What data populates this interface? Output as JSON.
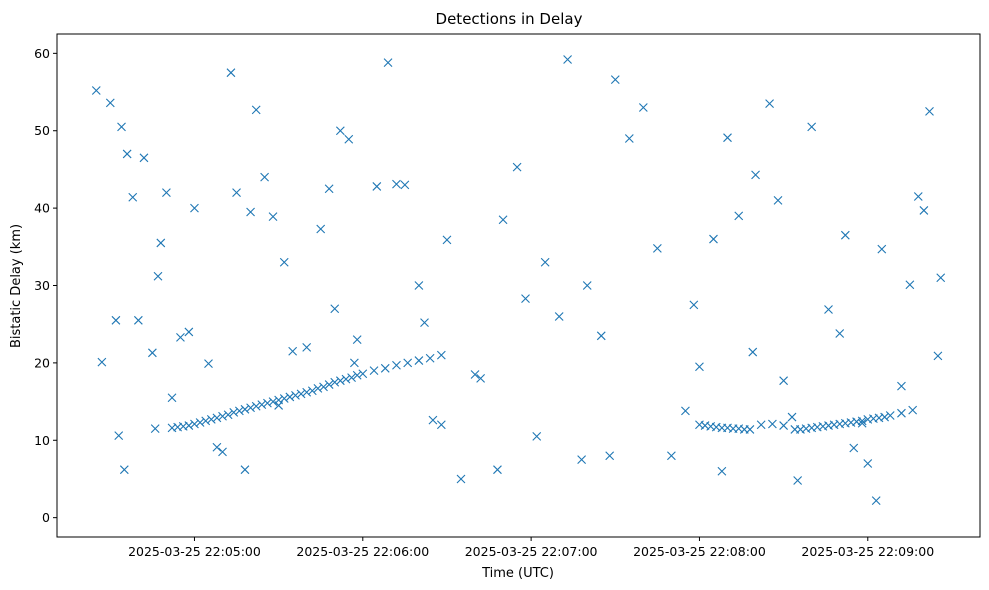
{
  "chart_data": {
    "type": "scatter",
    "title": "Detections in Delay",
    "xlabel": "Time (UTC)",
    "ylabel": "Bistatic Delay (km)",
    "x_ticks": [
      "2025-03-25 22:05:00",
      "2025-03-25 22:06:00",
      "2025-03-25 22:07:00",
      "2025-03-25 22:08:00",
      "2025-03-25 22:09:00"
    ],
    "y_ticks": [
      0,
      10,
      20,
      30,
      40,
      50,
      60
    ],
    "xlim": [
      "2025-03-25 22:04:11",
      "2025-03-25 22:09:40"
    ],
    "ylim": [
      -2.5,
      62.5
    ],
    "marker": "x",
    "grid": false,
    "color": "#1f77b4",
    "series": [
      {
        "x": [
          "2025-03-25 22:04:25",
          "2025-03-25 22:04:27",
          "2025-03-25 22:04:32",
          "2025-03-25 22:04:33",
          "2025-03-25 22:04:35",
          "2025-03-25 22:04:38",
          "2025-03-25 22:04:40",
          "2025-03-25 22:04:42",
          "2025-03-25 22:04:45",
          "2025-03-25 22:04:52",
          "2025-03-25 22:04:55",
          "2025-03-25 22:05:08",
          "2025-03-25 22:05:13",
          "2025-03-25 22:05:18",
          "2025-03-25 22:05:20",
          "2025-03-25 22:05:30",
          "2025-03-25 22:05:40",
          "2025-03-25 22:05:52",
          "2025-03-25 22:05:58",
          "2025-03-25 22:06:05",
          "2025-03-25 22:06:09",
          "2025-03-25 22:06:20",
          "2025-03-25 22:06:28",
          "2025-03-25 22:06:42",
          "2025-03-25 22:06:55",
          "2025-03-25 22:07:10",
          "2025-03-25 22:07:13",
          "2025-03-25 22:07:25",
          "2025-03-25 22:07:40",
          "2025-03-25 22:07:55",
          "2025-03-25 22:08:10",
          "2025-03-25 22:08:14",
          "2025-03-25 22:08:19",
          "2025-03-25 22:08:28",
          "2025-03-25 22:08:33",
          "2025-03-25 22:08:46",
          "2025-03-25 22:08:55",
          "2025-03-25 22:09:00",
          "2025-03-25 22:09:12",
          "2025-03-25 22:09:22",
          "2025-03-25 22:09:26",
          "2025-03-25 22:04:30",
          "2025-03-25 22:04:48",
          "2025-03-25 22:05:00",
          "2025-03-25 22:05:25",
          "2025-03-25 22:05:50",
          "2025-03-25 22:06:15",
          "2025-03-25 22:06:35",
          "2025-03-25 22:07:05",
          "2025-03-25 22:07:35",
          "2025-03-25 22:08:05",
          "2025-03-25 22:08:40",
          "2025-03-25 22:09:05",
          "2025-03-25 22:09:20",
          "2025-03-25 22:04:34",
          "2025-03-25 22:04:47",
          "2025-03-25 22:05:15",
          "2025-03-25 22:05:35",
          "2025-03-25 22:05:55",
          "2025-03-25 22:06:25",
          "2025-03-25 22:06:50",
          "2025-03-25 22:07:20",
          "2025-03-25 22:07:50",
          "2025-03-25 22:08:20",
          "2025-03-25 22:08:50",
          "2025-03-25 22:09:15",
          "2025-03-25 22:04:36",
          "2025-03-25 22:04:58",
          "2025-03-25 22:05:22",
          "2025-03-25 22:05:45",
          "2025-03-25 22:06:12",
          "2025-03-25 22:06:40",
          "2025-03-25 22:07:02",
          "2025-03-25 22:07:30",
          "2025-03-25 22:08:00",
          "2025-03-25 22:08:25",
          "2025-03-25 22:08:58",
          "2025-03-25 22:09:25",
          "2025-03-25 22:04:46",
          "2025-03-25 22:05:10",
          "2025-03-25 22:05:28",
          "2025-03-25 22:05:48",
          "2025-03-25 22:06:22",
          "2025-03-25 22:06:48",
          "2025-03-25 22:07:18",
          "2025-03-25 22:07:45",
          "2025-03-25 22:08:08",
          "2025-03-25 22:08:35",
          "2025-03-25 22:09:03",
          "2025-03-25 22:04:50",
          "2025-03-25 22:05:05",
          "2025-03-25 22:05:32",
          "2025-03-25 22:05:57",
          "2025-03-25 22:06:30",
          "2025-03-25 22:06:58",
          "2025-03-25 22:07:28",
          "2025-03-25 22:07:58",
          "2025-03-25 22:08:30",
          "2025-03-25 22:08:52",
          "2025-03-25 22:09:18"
        ],
        "y": [
          55.2,
          20.1,
          25.5,
          10.6,
          6.2,
          41.4,
          25.5,
          46.5,
          21.3,
          15.5,
          23.3,
          9.1,
          57.5,
          6.2,
          39.5,
          14.5,
          22.0,
          50.0,
          23.0,
          42.8,
          58.8,
          30.0,
          12.0,
          18.0,
          45.3,
          26.0,
          59.2,
          23.5,
          53.0,
          13.8,
          49.1,
          39.0,
          21.4,
          41.0,
          13.0,
          26.9,
          9.0,
          7.0,
          17.0,
          52.5,
          31.0,
          53.6,
          35.5,
          40.0,
          44.0,
          27.0,
          43.0,
          5.0,
          33.0,
          49.0,
          36.0,
          50.5,
          34.7,
          39.7,
          50.5,
          31.2,
          42.0,
          21.5,
          48.9,
          12.6,
          38.5,
          30.0,
          8.0,
          44.3,
          23.8,
          30.1,
          47.0,
          24.0,
          52.7,
          37.3,
          43.1,
          18.5,
          10.5,
          56.6,
          19.5,
          53.5,
          12.2,
          20.9,
          11.5,
          8.5,
          38.9,
          42.5,
          25.2,
          6.2,
          7.5,
          34.8,
          6.0,
          4.8,
          2.2,
          42.0,
          19.9,
          33.0,
          20.0,
          35.9,
          28.3,
          8.0,
          27.5,
          17.7,
          36.5,
          41.5
        ]
      },
      {
        "track": "lower",
        "x": [
          "2025-03-25 22:04:52",
          "2025-03-25 22:04:54",
          "2025-03-25 22:04:56",
          "2025-03-25 22:04:58",
          "2025-03-25 22:05:00",
          "2025-03-25 22:05:02",
          "2025-03-25 22:05:04",
          "2025-03-25 22:05:06",
          "2025-03-25 22:05:08",
          "2025-03-25 22:05:10",
          "2025-03-25 22:05:12",
          "2025-03-25 22:05:14",
          "2025-03-25 22:05:16",
          "2025-03-25 22:05:18",
          "2025-03-25 22:05:20",
          "2025-03-25 22:05:22",
          "2025-03-25 22:05:24",
          "2025-03-25 22:05:26",
          "2025-03-25 22:05:28",
          "2025-03-25 22:05:30",
          "2025-03-25 22:05:32",
          "2025-03-25 22:05:34",
          "2025-03-25 22:05:36",
          "2025-03-25 22:05:38",
          "2025-03-25 22:05:40",
          "2025-03-25 22:05:42",
          "2025-03-25 22:05:44",
          "2025-03-25 22:05:46",
          "2025-03-25 22:05:48",
          "2025-03-25 22:05:50",
          "2025-03-25 22:05:52",
          "2025-03-25 22:05:54",
          "2025-03-25 22:05:56",
          "2025-03-25 22:05:58",
          "2025-03-25 22:06:00",
          "2025-03-25 22:06:04",
          "2025-03-25 22:06:08",
          "2025-03-25 22:06:12",
          "2025-03-25 22:06:16",
          "2025-03-25 22:06:20",
          "2025-03-25 22:06:24",
          "2025-03-25 22:06:28",
          "2025-03-25 22:08:00",
          "2025-03-25 22:08:02",
          "2025-03-25 22:08:04",
          "2025-03-25 22:08:06",
          "2025-03-25 22:08:08",
          "2025-03-25 22:08:10",
          "2025-03-25 22:08:12",
          "2025-03-25 22:08:14",
          "2025-03-25 22:08:16",
          "2025-03-25 22:08:18",
          "2025-03-25 22:08:22",
          "2025-03-25 22:08:26",
          "2025-03-25 22:08:30",
          "2025-03-25 22:08:34",
          "2025-03-25 22:08:36",
          "2025-03-25 22:08:38",
          "2025-03-25 22:08:40",
          "2025-03-25 22:08:42",
          "2025-03-25 22:08:44",
          "2025-03-25 22:08:46",
          "2025-03-25 22:08:48",
          "2025-03-25 22:08:50",
          "2025-03-25 22:08:52",
          "2025-03-25 22:08:54",
          "2025-03-25 22:08:56",
          "2025-03-25 22:08:58",
          "2025-03-25 22:09:00",
          "2025-03-25 22:09:02",
          "2025-03-25 22:09:04",
          "2025-03-25 22:09:06",
          "2025-03-25 22:09:08",
          "2025-03-25 22:09:12",
          "2025-03-25 22:09:16"
        ],
        "y": [
          11.6,
          11.7,
          11.8,
          11.9,
          12.1,
          12.3,
          12.5,
          12.7,
          12.9,
          13.1,
          13.3,
          13.6,
          13.8,
          14.0,
          14.2,
          14.4,
          14.6,
          14.8,
          15.0,
          15.2,
          15.4,
          15.6,
          15.8,
          16.0,
          16.2,
          16.4,
          16.7,
          16.9,
          17.2,
          17.5,
          17.7,
          17.9,
          18.1,
          18.4,
          18.6,
          19.0,
          19.3,
          19.7,
          20.0,
          20.3,
          20.6,
          21.0,
          12.0,
          11.9,
          11.8,
          11.7,
          11.6,
          11.6,
          11.5,
          11.5,
          11.4,
          11.4,
          12.0,
          12.1,
          11.9,
          11.4,
          11.4,
          11.5,
          11.6,
          11.7,
          11.8,
          11.9,
          12.0,
          12.1,
          12.2,
          12.3,
          12.4,
          12.5,
          12.7,
          12.8,
          12.9,
          13.0,
          13.2,
          13.5,
          13.9
        ]
      }
    ]
  }
}
